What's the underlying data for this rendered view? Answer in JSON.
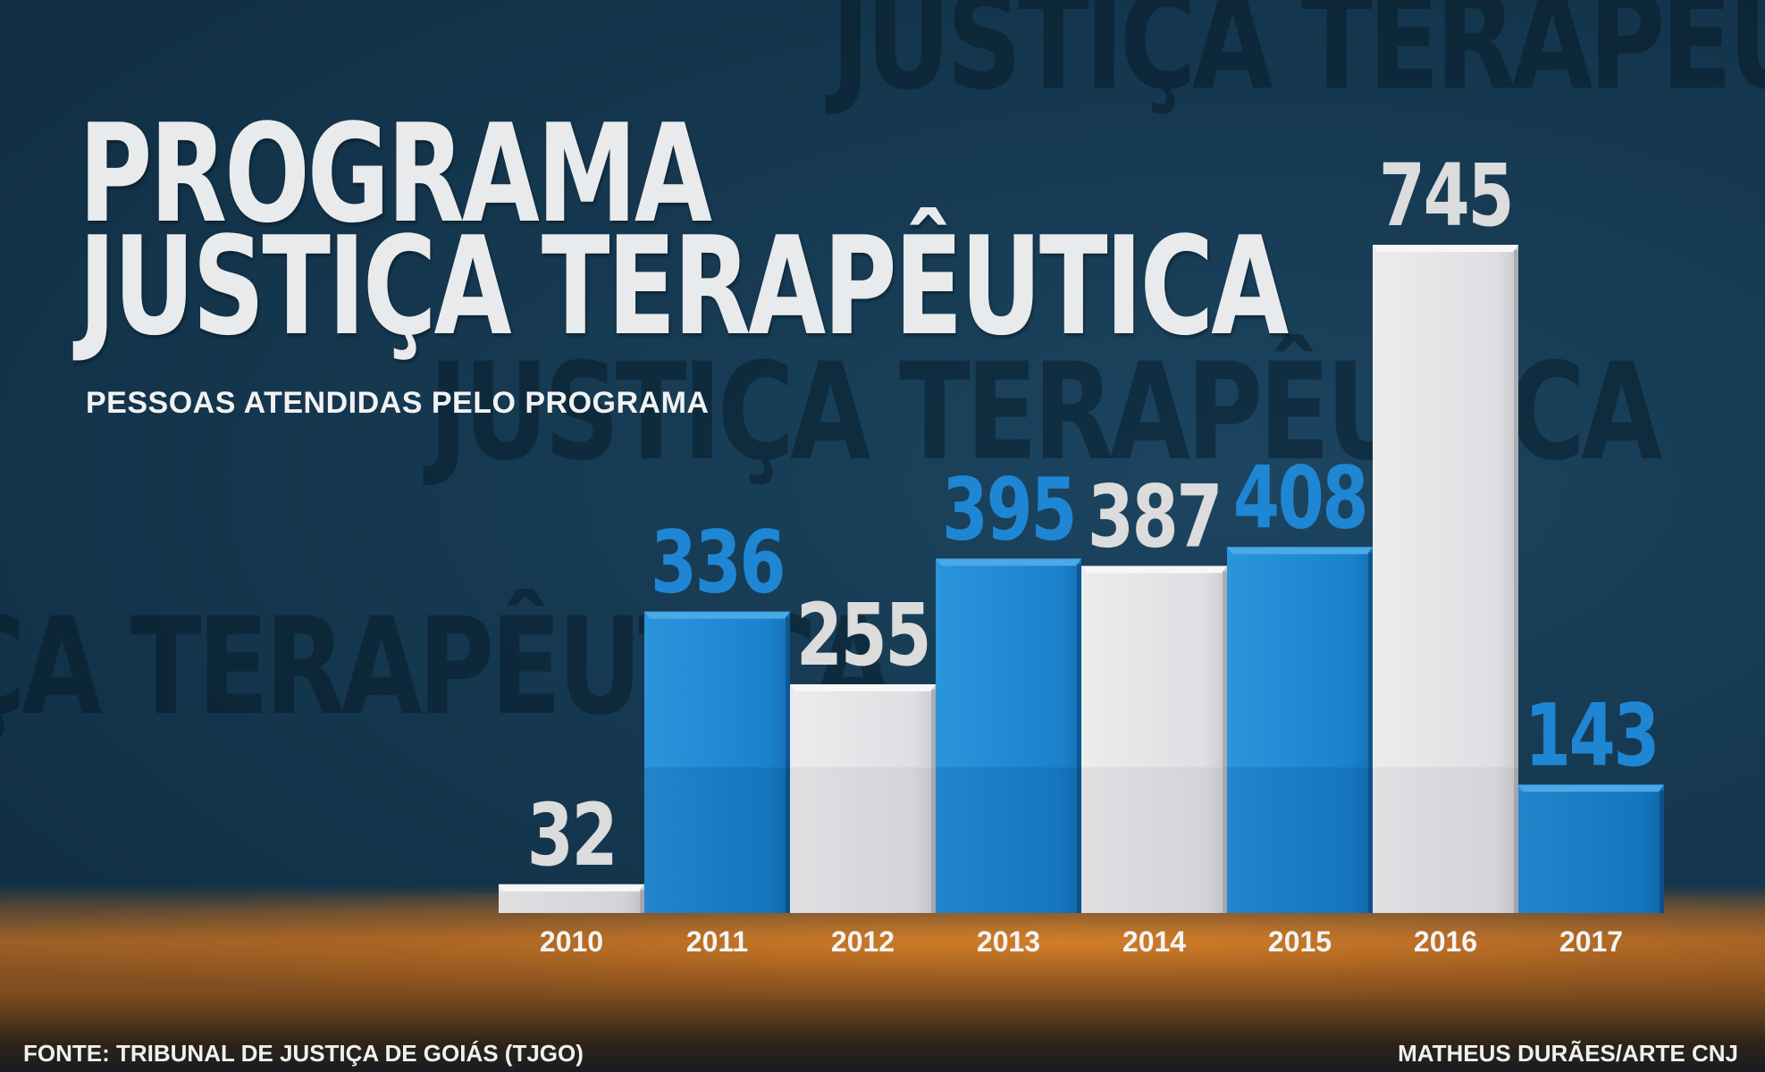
{
  "title": {
    "line1": "PROGRAMA",
    "line2": "JUSTIÇA TERAPÊUTICA"
  },
  "subtitle": "PESSOAS ATENDIDAS PELO PROGRAMA",
  "footer": {
    "source": "FONTE:  TRIBUNAL DE JUSTIÇA DE GOIÁS (TJGO)",
    "credit": "MATHEUS DURÃES/ARTE CNJ"
  },
  "colors": {
    "blue_bar": "#1a7fc7",
    "white_bar": "#dfe0e3",
    "blue_label": "#1f86d4",
    "white_label": "#dcdcdc"
  },
  "chart_data": {
    "type": "bar",
    "title": "PROGRAMA JUSTIÇA TERAPÊUTICA",
    "subtitle": "PESSOAS ATENDIDAS PELO PROGRAMA",
    "categories": [
      "2010",
      "2011",
      "2012",
      "2013",
      "2014",
      "2015",
      "2016",
      "2017"
    ],
    "values": [
      32,
      336,
      255,
      395,
      387,
      408,
      745,
      143
    ],
    "bar_colors": [
      "white",
      "blue",
      "white",
      "blue",
      "white",
      "blue",
      "white",
      "blue"
    ],
    "data_labels": [
      "32",
      "336",
      "255",
      "395",
      "387",
      "408",
      "745",
      "143"
    ],
    "ylim": [
      0,
      745
    ],
    "grid": false,
    "legend": "none",
    "xlabel": "",
    "ylabel": ""
  }
}
